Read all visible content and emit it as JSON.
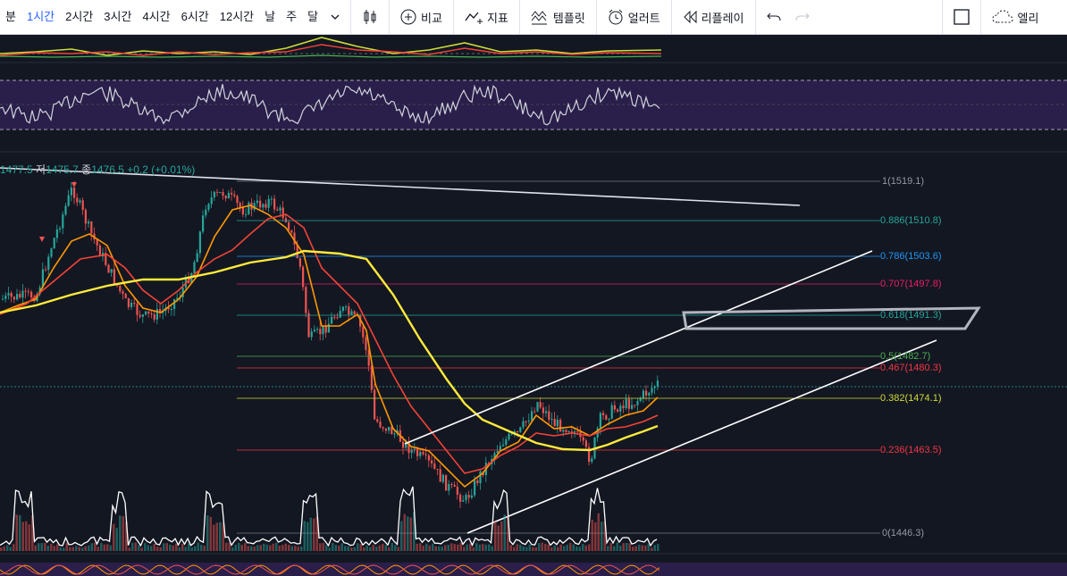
{
  "toolbar": {
    "timeframes": [
      "분",
      "1시간",
      "2시간",
      "3시간",
      "4시간",
      "6시간",
      "12시간",
      "날",
      "주",
      "달"
    ],
    "active_timeframe": "1시간",
    "compare_label": "비교",
    "indicators_label": "지표",
    "templates_label": "템플릿",
    "alert_label": "얼러트",
    "replay_label": "리플레이",
    "right_label": "엘리"
  },
  "ohlc": {
    "open": "1477.5",
    "low_label": "저",
    "low": "1475.7",
    "close_label": "종",
    "close": "1476.5",
    "change": "+0.2 (+0.01%)"
  },
  "fib_levels": [
    {
      "label": "1(1519.1)",
      "color": "#9598a1"
    },
    {
      "label": "0.886(1510.8)",
      "color": "#26a69a"
    },
    {
      "label": "0.786(1503.6)",
      "color": "#2196f3"
    },
    {
      "label": "0.707(1497.8)",
      "color": "#e91e63"
    },
    {
      "label": "0.618(1491.3)",
      "color": "#26a69a"
    },
    {
      "label": "0.5(1482.7)",
      "color": "#4caf50"
    },
    {
      "label": "0.467(1480.3)",
      "color": "#f23645"
    },
    {
      "label": "0.382(1474.1)",
      "color": "#cddc39"
    },
    {
      "label": "0.236(1463.5)",
      "color": "#f23645"
    },
    {
      "label": "0(1446.3)",
      "color": "#9598a1"
    }
  ],
  "colors": {
    "background": "#131722",
    "up": "#26a69a",
    "down": "#ef5350",
    "ma_orange": "#ff9800",
    "ma_red": "#f44336",
    "ma_yellow": "#ffeb3b",
    "rsi_band": "#2a1e4a",
    "active": "#2962ff"
  }
}
